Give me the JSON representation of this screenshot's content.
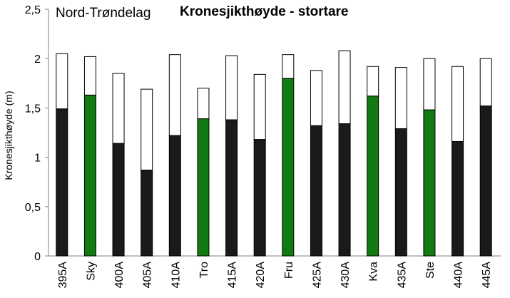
{
  "chart_data": {
    "type": "bar",
    "region_label": "Nord-Trøndelag",
    "title": "Kronesjikthøyde - stortare",
    "ylabel": "Kronesjikthøyde  (m)",
    "xlabel": "",
    "ylim": [
      0,
      2.5
    ],
    "yticks": [
      "0",
      "0,5",
      "1",
      "1,5",
      "2",
      "2,5"
    ],
    "categories": [
      "395A",
      "Sky",
      "400A",
      "405A",
      "410A",
      "Tro",
      "415A",
      "420A",
      "Fru",
      "425A",
      "430A",
      "Kva",
      "435A",
      "Ste",
      "440A",
      "445A"
    ],
    "bar_colors": [
      "#1a1a1a",
      "#117a11",
      "#1a1a1a",
      "#1a1a1a",
      "#1a1a1a",
      "#117a11",
      "#1a1a1a",
      "#1a1a1a",
      "#117a11",
      "#1a1a1a",
      "#1a1a1a",
      "#117a11",
      "#1a1a1a",
      "#117a11",
      "#1a1a1a",
      "#1a1a1a"
    ],
    "series": [
      {
        "values": [
          1.49,
          1.63,
          1.14,
          0.87,
          1.22,
          1.39,
          1.38,
          1.18,
          1.8,
          1.32,
          1.34,
          1.62,
          1.29,
          1.48,
          1.16,
          1.52
        ]
      },
      {
        "values": [
          2.05,
          2.02,
          1.85,
          1.69,
          2.04,
          1.7,
          2.03,
          1.84,
          2.04,
          1.88,
          2.08,
          1.92,
          1.91,
          2.0,
          1.92,
          2.0
        ]
      }
    ],
    "upper_color": "#ffffff",
    "grid": false,
    "legend": "none"
  }
}
